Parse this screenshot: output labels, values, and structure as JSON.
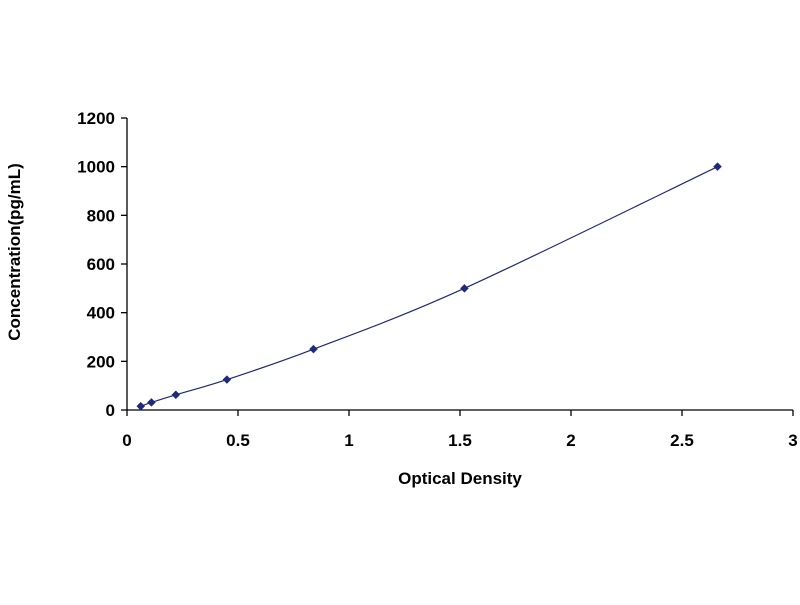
{
  "chart_data": {
    "type": "scatter",
    "title": "",
    "xlabel": "Optical Density",
    "ylabel": "Concentration(pg/mL)",
    "xlim": [
      0,
      3
    ],
    "ylim": [
      0,
      1200
    ],
    "xticks": [
      0,
      0.5,
      1,
      1.5,
      2,
      2.5,
      3
    ],
    "xtick_labels": [
      "0",
      "0.5",
      "1",
      "1.5",
      "2",
      "2.5",
      "3"
    ],
    "yticks": [
      0,
      200,
      400,
      600,
      800,
      1000,
      1200
    ],
    "ytick_labels": [
      "0",
      "200",
      "400",
      "600",
      "800",
      "1000",
      "1200"
    ],
    "grid": false,
    "legend": "none",
    "series": [
      {
        "x": [
          0.062,
          0.11,
          0.22,
          0.45,
          0.84,
          1.52,
          2.66
        ],
        "y": [
          15.6,
          31.2,
          62.5,
          125,
          250,
          500,
          1000
        ],
        "marker": "diamond",
        "fit_line": "smooth",
        "color": "#1f2a7a"
      }
    ]
  }
}
